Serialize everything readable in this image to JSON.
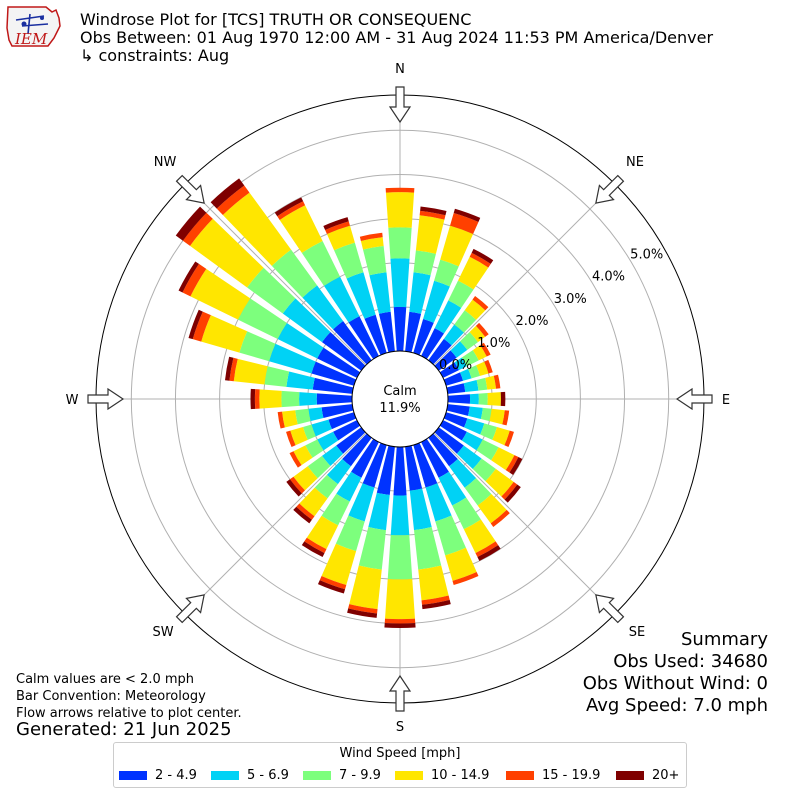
{
  "header": {
    "title": "Windrose Plot for [TCS] TRUTH OR CONSEQUENC",
    "obs_between": "Obs Between: 01 Aug 1970 12:00 AM - 31 Aug 2024 11:53 PM America/Denver",
    "constraints": "↳ constraints: Aug",
    "logo_text": "IEM"
  },
  "notes": {
    "calm_def": "Calm values are < 2.0 mph",
    "bar_convention": "Bar Convention: Meteorology",
    "flow_arrows": "Flow arrows relative to plot center.",
    "generated": "Generated: 21 Jun 2025"
  },
  "summary": {
    "title": "Summary",
    "obs_used": "Obs Used: 34680",
    "obs_without_wind": "Obs Without Wind: 0",
    "avg_speed": "Avg Speed: 7.0 mph"
  },
  "chart_data": {
    "type": "windrose",
    "calm_label": "Calm",
    "calm_value": "11.9%",
    "calm_percent": 11.9,
    "compass_labels": [
      "N",
      "NE",
      "E",
      "SE",
      "S",
      "SW",
      "W",
      "NW"
    ],
    "radial_tick_labels": [
      "0.0%",
      "1.0%",
      "2.0%",
      "3.0%",
      "4.0%",
      "5.0%"
    ],
    "radial_ticks": [
      0,
      1,
      2,
      3,
      4,
      5
    ],
    "radial_max": 5.8,
    "legend_title": "Wind Speed [mph]",
    "bins": [
      "2 - 4.9",
      "5 - 6.9",
      "7 - 9.9",
      "10 - 14.9",
      "15 - 19.9",
      "20+"
    ],
    "colors": [
      "#0033ff",
      "#00d2f5",
      "#7dff7d",
      "#ffe600",
      "#ff4000",
      "#7f0000"
    ],
    "direction_bins_deg": [
      0,
      10,
      20,
      30,
      40,
      50,
      60,
      70,
      80,
      90,
      100,
      110,
      120,
      130,
      140,
      150,
      160,
      170,
      180,
      190,
      200,
      210,
      220,
      230,
      240,
      250,
      260,
      270,
      280,
      290,
      300,
      310,
      320,
      330,
      340,
      350
    ],
    "cumulative_percent": [
      [
        1.0,
        2.1,
        2.8,
        3.6,
        3.7,
        3.7
      ],
      [
        0.9,
        1.8,
        2.3,
        3.1,
        3.2,
        3.3
      ],
      [
        0.8,
        1.7,
        2.2,
        3.0,
        3.3,
        3.4
      ],
      [
        0.7,
        1.4,
        1.9,
        2.5,
        2.6,
        2.7
      ],
      [
        0.6,
        1.0,
        1.4,
        1.7,
        1.8,
        1.8
      ],
      [
        0.5,
        0.8,
        1.1,
        1.3,
        1.4,
        1.4
      ],
      [
        0.4,
        0.6,
        0.9,
        1.1,
        1.2,
        1.2
      ],
      [
        0.4,
        0.6,
        0.8,
        1.0,
        1.1,
        1.1
      ],
      [
        0.4,
        0.7,
        0.9,
        1.1,
        1.2,
        1.2
      ],
      [
        0.5,
        0.7,
        0.9,
        1.2,
        1.2,
        1.3
      ],
      [
        0.5,
        0.8,
        1.0,
        1.3,
        1.4,
        1.4
      ],
      [
        0.5,
        0.9,
        1.2,
        1.5,
        1.6,
        1.6
      ],
      [
        0.6,
        1.0,
        1.4,
        1.8,
        1.9,
        2.0
      ],
      [
        0.7,
        1.2,
        1.6,
        2.1,
        2.2,
        2.3
      ],
      [
        0.8,
        1.4,
        1.9,
        2.4,
        2.5,
        2.5
      ],
      [
        0.9,
        1.6,
        2.2,
        2.8,
        2.9,
        3.0
      ],
      [
        1.0,
        1.8,
        2.6,
        3.2,
        3.3,
        3.3
      ],
      [
        1.0,
        1.9,
        2.8,
        3.5,
        3.6,
        3.7
      ],
      [
        1.1,
        2.0,
        3.0,
        3.9,
        4.0,
        4.1
      ],
      [
        1.1,
        1.9,
        2.8,
        3.7,
        3.8,
        3.9
      ],
      [
        1.0,
        1.8,
        2.5,
        3.3,
        3.4,
        3.5
      ],
      [
        0.9,
        1.5,
        2.1,
        2.7,
        2.8,
        2.9
      ],
      [
        0.8,
        1.3,
        1.7,
        2.2,
        2.3,
        2.4
      ],
      [
        0.7,
        1.1,
        1.5,
        1.9,
        2.0,
        2.1
      ],
      [
        0.6,
        1.0,
        1.3,
        1.6,
        1.7,
        1.7
      ],
      [
        0.6,
        1.0,
        1.2,
        1.5,
        1.6,
        1.6
      ],
      [
        0.7,
        1.0,
        1.3,
        1.6,
        1.7,
        1.7
      ],
      [
        0.8,
        1.2,
        1.6,
        2.1,
        2.2,
        2.3
      ],
      [
        0.9,
        1.5,
        2.0,
        2.7,
        2.8,
        2.9
      ],
      [
        1.0,
        2.0,
        2.7,
        3.6,
        3.8,
        3.9
      ],
      [
        1.0,
        2.0,
        3.0,
        4.2,
        4.4,
        4.5
      ],
      [
        1.1,
        2.2,
        3.2,
        4.8,
        5.0,
        5.2
      ],
      [
        1.1,
        2.1,
        3.1,
        4.7,
        4.9,
        5.1
      ],
      [
        1.0,
        2.0,
        2.9,
        3.8,
        3.9,
        4.0
      ],
      [
        0.9,
        1.9,
        2.6,
        3.0,
        3.1,
        3.2
      ],
      [
        0.9,
        1.8,
        2.4,
        2.6,
        2.7,
        2.7
      ]
    ]
  }
}
